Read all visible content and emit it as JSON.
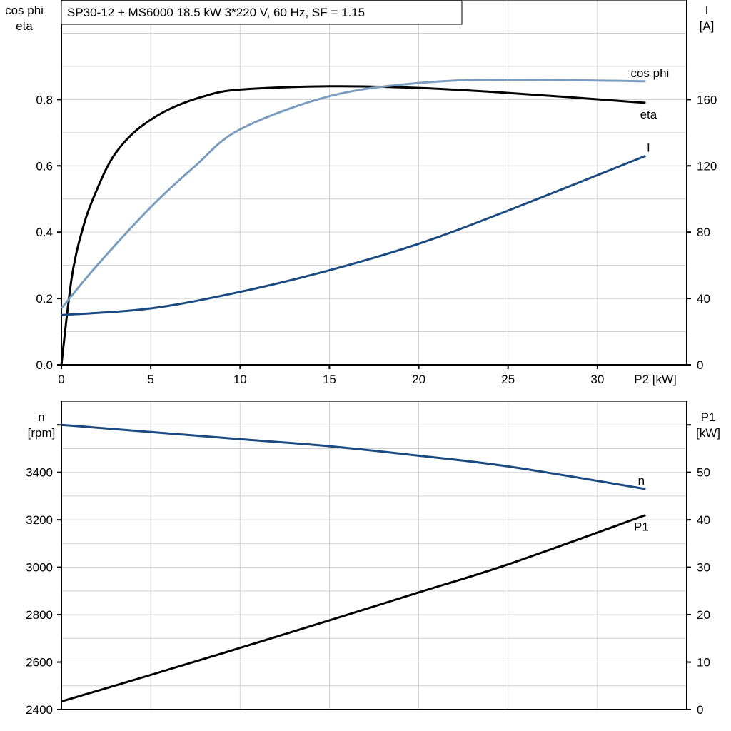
{
  "chart_data": [
    {
      "type": "line",
      "title": "SP30-12 + MS6000   18.5 kW   3*220 V, 60 Hz, SF = 1.15",
      "xlabel": "P2 [kW]",
      "ylabel_left": [
        "cos phi",
        "eta"
      ],
      "ylabel_right": [
        "I",
        "[A]"
      ],
      "xlim": [
        0,
        35
      ],
      "ylim_left": [
        0,
        1.1
      ],
      "ylim_right": [
        0,
        220
      ],
      "x_ticks": [
        "0",
        "5",
        "10",
        "15",
        "20",
        "25",
        "30"
      ],
      "y_ticks_left": [
        "0.0",
        "0.2",
        "0.4",
        "0.6",
        "0.8"
      ],
      "y_ticks_right": [
        "0",
        "40",
        "80",
        "120",
        "160"
      ],
      "grid": true,
      "series": [
        {
          "name": "eta",
          "axis": "left",
          "color": "#000000",
          "x": [
            0,
            0.6,
            1.3,
            2,
            2.7,
            3.5,
            4.5,
            6,
            8,
            10,
            15,
            20,
            25,
            32.7
          ],
          "y": [
            0,
            0.27,
            0.43,
            0.53,
            0.61,
            0.67,
            0.72,
            0.77,
            0.81,
            0.83,
            0.84,
            0.835,
            0.82,
            0.79
          ]
        },
        {
          "name": "cos phi",
          "axis": "left",
          "color": "#7a9cbf",
          "x": [
            0,
            2,
            5,
            7.5,
            10,
            15,
            20,
            25,
            32.7
          ],
          "y": [
            0.17,
            0.3,
            0.475,
            0.6,
            0.71,
            0.81,
            0.85,
            0.86,
            0.855
          ]
        },
        {
          "name": "I",
          "axis": "right",
          "color": "#1a4a80",
          "x": [
            0,
            5,
            10,
            15,
            20,
            25,
            32.7
          ],
          "y": [
            30,
            34,
            44,
            57,
            73,
            93,
            126
          ]
        }
      ]
    },
    {
      "type": "line",
      "xlim": [
        0,
        35
      ],
      "ylabel_left": [
        "n",
        "[rpm]"
      ],
      "ylabel_right": [
        "P1",
        "[kW]"
      ],
      "ylim_left": [
        2400,
        3700
      ],
      "ylim_right": [
        0,
        65
      ],
      "y_ticks_left": [
        "2400",
        "2600",
        "2800",
        "3000",
        "3200",
        "3400"
      ],
      "y_ticks_right": [
        "0",
        "10",
        "20",
        "30",
        "40",
        "50"
      ],
      "grid": true,
      "series": [
        {
          "name": "n",
          "axis": "left",
          "color": "#1a4a80",
          "x": [
            0,
            5,
            10,
            15,
            20,
            25,
            32.7
          ],
          "y": [
            3600,
            3570,
            3540,
            3510,
            3470,
            3425,
            3330
          ]
        },
        {
          "name": "P1",
          "axis": "right",
          "color": "#000000",
          "x": [
            0,
            5,
            10,
            15,
            20,
            25,
            32.7
          ],
          "y": [
            1.7,
            7.3,
            13,
            18.8,
            24.7,
            30.6,
            41
          ]
        }
      ]
    }
  ]
}
